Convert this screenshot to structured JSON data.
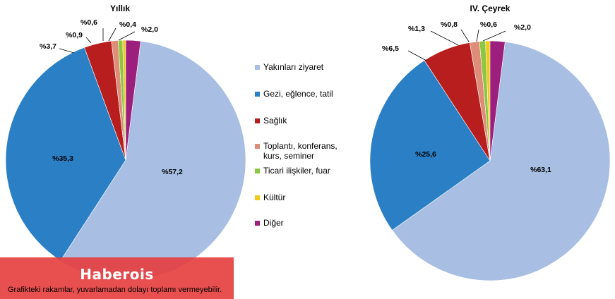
{
  "chart_data": [
    {
      "type": "pie",
      "title": "Yıllık",
      "categories": [
        "Yakınları ziyaret",
        "Gezi, eğlence, tatil",
        "Sağlık",
        "Toplantı, konferans, kurs, seminer",
        "Ticari ilişkiler, fuar",
        "Kültür",
        "Diğer"
      ],
      "values": [
        57.2,
        35.3,
        3.7,
        0.9,
        0.6,
        0.4,
        2.0
      ],
      "labels": [
        "%57,2",
        "%35,3",
        "%3,7",
        "%0,9",
        "%0,6",
        "%0,4",
        "%2,0"
      ],
      "colors": [
        "#A8BFE3",
        "#2A7FC5",
        "#B81E1E",
        "#DE8E78",
        "#8DC63F",
        "#F2C91A",
        "#9C1F7D"
      ]
    },
    {
      "type": "pie",
      "title": "IV. Çeyrek",
      "categories": [
        "Yakınları ziyaret",
        "Gezi, eğlence, tatil",
        "Sağlık",
        "Toplantı, konferans, kurs, seminer",
        "Ticari ilişkiler, fuar",
        "Kültür",
        "Diğer"
      ],
      "values": [
        63.1,
        25.6,
        6.5,
        1.3,
        0.8,
        0.6,
        2.0
      ],
      "labels": [
        "%63,1",
        "%25,6",
        "%6,5",
        "%1,3",
        "%0,8",
        "%0,6",
        "%2,0"
      ],
      "colors": [
        "#A8BFE3",
        "#2A7FC5",
        "#B81E1E",
        "#DE8E78",
        "#8DC63F",
        "#F2C91A",
        "#9C1F7D"
      ]
    }
  ],
  "legend": {
    "placement": "center",
    "items": [
      {
        "label": "Yakınları ziyaret",
        "color": "#A8BFE3"
      },
      {
        "label": "Gezi, eğlence, tatil",
        "color": "#2A7FC5"
      },
      {
        "label": "Sağlık",
        "color": "#B81E1E"
      },
      {
        "label": "Toplantı, konferans, kurs, seminer",
        "color": "#DE8E78"
      },
      {
        "label": "Ticari ilişkiler, fuar",
        "color": "#8DC63F"
      },
      {
        "label": "Kültür",
        "color": "#F2C91A"
      },
      {
        "label": "Diğer",
        "color": "#9C1F7D"
      }
    ]
  },
  "watermark": "Haberois",
  "footnote": "Grafikteki rakamlar, yuvarlamadan dolayı toplamı vermeyebilir."
}
